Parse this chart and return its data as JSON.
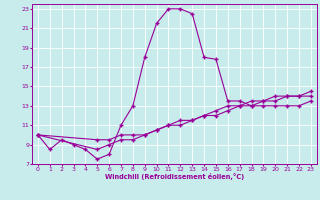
{
  "xlabel": "Windchill (Refroidissement éolien,°C)",
  "line_color": "#990099",
  "bg_color": "#c8ecec",
  "grid_color": "#ffffff",
  "xlim": [
    -0.5,
    23.5
  ],
  "ylim": [
    7,
    23.5
  ],
  "xticks": [
    0,
    1,
    2,
    3,
    4,
    5,
    6,
    7,
    8,
    9,
    10,
    11,
    12,
    13,
    14,
    15,
    16,
    17,
    18,
    19,
    20,
    21,
    22,
    23
  ],
  "yticks": [
    7,
    9,
    11,
    13,
    15,
    17,
    19,
    21,
    23
  ],
  "series1_x": [
    0,
    1,
    2,
    3,
    4,
    5,
    6,
    7,
    8,
    9,
    10,
    11,
    12,
    13,
    14,
    15,
    16,
    17,
    18,
    19,
    20,
    21,
    22,
    23
  ],
  "series1_y": [
    10.0,
    8.5,
    9.5,
    9.0,
    8.5,
    7.5,
    8.0,
    11.0,
    13.0,
    18.0,
    21.5,
    23.0,
    23.0,
    22.5,
    18.0,
    17.8,
    13.5,
    13.5,
    13.0,
    13.0,
    13.0,
    13.0,
    13.0,
    13.5
  ],
  "series2_x": [
    0,
    5,
    6,
    7,
    8,
    9,
    10,
    11,
    12,
    13,
    14,
    15,
    16,
    17,
    18,
    19,
    20,
    21,
    22,
    23
  ],
  "series2_y": [
    10.0,
    9.5,
    9.5,
    10.0,
    10.0,
    10.0,
    10.5,
    11.0,
    11.5,
    11.5,
    12.0,
    12.5,
    13.0,
    13.0,
    13.0,
    13.5,
    13.5,
    14.0,
    14.0,
    14.0
  ],
  "series3_x": [
    0,
    5,
    6,
    7,
    8,
    9,
    10,
    11,
    12,
    13,
    14,
    15,
    16,
    17,
    18,
    19,
    20,
    21,
    22,
    23
  ],
  "series3_y": [
    10.0,
    8.5,
    9.0,
    9.5,
    9.5,
    10.0,
    10.5,
    11.0,
    11.0,
    11.5,
    12.0,
    12.0,
    12.5,
    13.0,
    13.5,
    13.5,
    14.0,
    14.0,
    14.0,
    14.5
  ]
}
